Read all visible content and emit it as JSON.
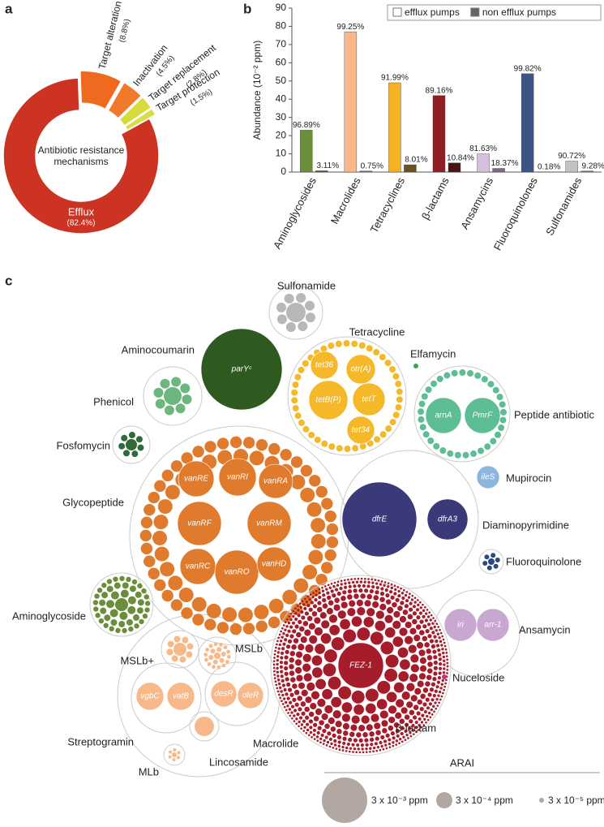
{
  "panel_labels": [
    "a",
    "b",
    "c"
  ],
  "chart_data": [
    {
      "type": "pie",
      "donut": true,
      "center_label": [
        "Antibiotic resistance",
        "mechanisms"
      ],
      "categories": [
        "Efflux",
        "Target alteration",
        "Inactivation",
        "Target replacement",
        "Target protection"
      ],
      "values": [
        82.4,
        8.8,
        4.5,
        2.8,
        1.5
      ],
      "value_labels": [
        "(82.4%)",
        "(8.8%)",
        "(4.5%)",
        "(2.8%)",
        "(1.5%)"
      ],
      "colors": [
        "#cc3322",
        "#ef6a1f",
        "#f07a2a",
        "#d6db3c",
        "#d9dd48"
      ]
    },
    {
      "type": "bar",
      "ylabel": "Abundance (10⁻² ppm)",
      "categories": [
        "Aminoglycosides",
        "Macrolides",
        "Tetracyclines",
        "β-lactams",
        "Ansamycins",
        "Fluoroquinolones",
        "Sulfonamides"
      ],
      "series": [
        {
          "name": "efflux pumps",
          "color": "#ffffff",
          "colors": [
            "#6b8e3a",
            "#f9b78a",
            "#f6b224",
            "#8e1f22",
            "#d6c0de",
            "#3b5586",
            "#c2c2c2"
          ],
          "values": [
            23,
            77,
            49,
            42,
            10,
            54,
            6
          ],
          "percent_labels": [
            "96.89%",
            "99.25%",
            "91.99%",
            "89.16%",
            "81.63%",
            "99.82%",
            "90.72%"
          ]
        },
        {
          "name": "non efflux pumps",
          "color": "#666666",
          "colors": [
            "#4d6628",
            "#8a6a55",
            "#6b5020",
            "#4a1416",
            "#7a6a86",
            "#2a3a5c",
            "#7a7a7a"
          ],
          "values": [
            0.7,
            0.6,
            4,
            5,
            2,
            0.1,
            0.6
          ],
          "percent_labels": [
            "3.11%",
            "0.75%",
            "8.01%",
            "10.84%",
            "18.37%",
            "0.18%",
            "9.28%"
          ]
        }
      ],
      "ylim": [
        0,
        90
      ],
      "yticks": [
        0,
        10,
        20,
        30,
        40,
        50,
        60,
        70,
        80,
        90
      ],
      "legend": "upper right"
    }
  ],
  "bubble_diagram": {
    "groups": [
      {
        "label": "Sulfonamide",
        "color": "#b8b8b8",
        "genes": []
      },
      {
        "label": "Aminocoumarin",
        "color": "#2f5a1f",
        "genes": [
          "parYᶜ"
        ]
      },
      {
        "label": "Tetracycline",
        "color": "#f4b829",
        "genes": [
          "tet36",
          "otr(A)",
          "tetB(P)",
          "tetT",
          "tet34"
        ]
      },
      {
        "label": "Elfamycin",
        "color": "#3aa84a",
        "genes": []
      },
      {
        "label": "Phenicol",
        "color": "#6db67d",
        "genes": []
      },
      {
        "label": "Peptide antibiotic",
        "color": "#5dbd94",
        "genes": [
          "arnA",
          "PmrF"
        ]
      },
      {
        "label": "Fosfomycin",
        "color": "#2f6b3a",
        "genes": []
      },
      {
        "label": "Glycopeptide",
        "color": "#e07a2c",
        "genes": [
          "vanRE",
          "vanRI",
          "vanRA",
          "vanRF",
          "vanRM",
          "vanRC",
          "vanRO",
          "vanHD"
        ]
      },
      {
        "label": "Diaminopyrimidine",
        "color": "#3a3a7a",
        "genes": [
          "dfrE",
          "dfrA3"
        ]
      },
      {
        "label": "Mupirocin",
        "color": "#8cb5e0",
        "genes": [
          "ileS"
        ]
      },
      {
        "label": "Fluoroquinolone",
        "color": "#2c4a80",
        "genes": []
      },
      {
        "label": "Aminoglycoside",
        "color": "#6b8e3a",
        "genes": []
      },
      {
        "label": "Ansamycin",
        "color": "#c8a8d0",
        "genes": [
          "iri",
          "arr-1"
        ]
      },
      {
        "label": "β-lactam",
        "color": "#a51d2a",
        "genes": [
          "FEZ-1"
        ]
      },
      {
        "label": "Nuceloside",
        "color": "#d0306a",
        "genes": []
      },
      {
        "label": "MSLb+",
        "color": "#f8b98a",
        "genes": []
      },
      {
        "label": "MSLb",
        "color": "#f8b98a",
        "genes": []
      },
      {
        "label": "Streptogramin",
        "color": "#f8b98a",
        "genes": [
          "vgbC",
          "vatB"
        ]
      },
      {
        "label": "Macrolide",
        "color": "#f8b98a",
        "genes": [
          "desR",
          "oleR"
        ]
      },
      {
        "label": "Lincosamide",
        "color": "#f8b98a",
        "genes": []
      },
      {
        "label": "MLb",
        "color": "#f8b98a",
        "genes": []
      }
    ],
    "legend": {
      "title": "ARAI",
      "items": [
        "3 x 10⁻³ ppm",
        "3 x 10⁻⁴ ppm",
        "3 x 10⁻⁵ ppm"
      ]
    }
  }
}
